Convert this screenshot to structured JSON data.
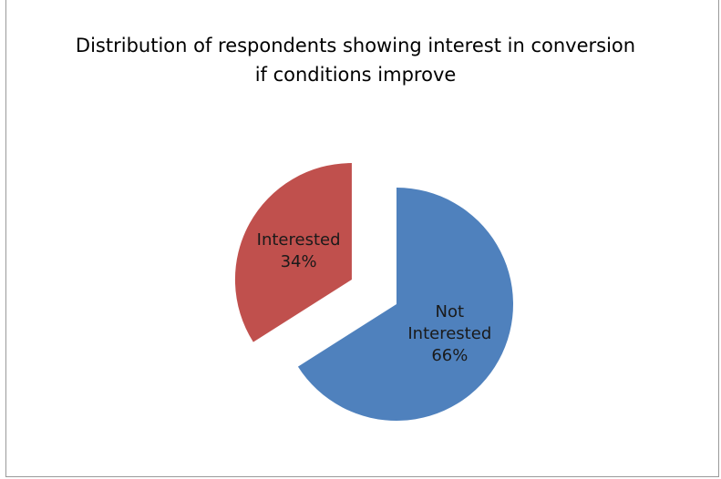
{
  "chart_data": {
    "type": "pie",
    "title": "Distribution of respondents showing interest in conversion if conditions improve",
    "slices": [
      {
        "label": "Not Interested",
        "value": 66,
        "percent_label": "66%",
        "color": "#4f81bd",
        "exploded": false
      },
      {
        "label": "Interested",
        "value": 34,
        "percent_label": "34%",
        "color": "#c0504d",
        "exploded": true
      }
    ],
    "legend": "none",
    "data_labels": "inside"
  }
}
